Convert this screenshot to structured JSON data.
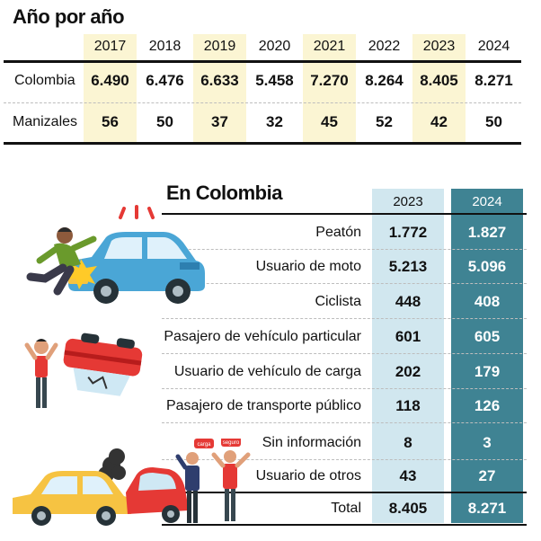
{
  "top": {
    "title": "Año por año",
    "years": [
      "2017",
      "2018",
      "2019",
      "2020",
      "2021",
      "2022",
      "2023",
      "2024"
    ],
    "rows": [
      {
        "label": "Colombia",
        "values": [
          "6.490",
          "6.476",
          "6.633",
          "5.458",
          "7.270",
          "8.264",
          "8.405",
          "8.271"
        ]
      },
      {
        "label": "Manizales",
        "values": [
          "56",
          "50",
          "37",
          "32",
          "45",
          "52",
          "42",
          "50"
        ]
      }
    ]
  },
  "bottom": {
    "title": "En Colombia",
    "col_2023": "2023",
    "col_2024": "2024",
    "rows": [
      {
        "label": "Peatón",
        "v2023": "1.772",
        "v2024": "1.827"
      },
      {
        "label": "Usuario de moto",
        "v2023": "5.213",
        "v2024": "5.096"
      },
      {
        "label": "Ciclista",
        "v2023": "448",
        "v2024": "408"
      },
      {
        "label": "Pasajero de vehículo particular",
        "v2023": "601",
        "v2024": "605"
      },
      {
        "label": "Usuario de vehículo de carga",
        "v2023": "202",
        "v2024": "179"
      },
      {
        "label": "Pasajero de transporte público",
        "v2023": "118",
        "v2024": "126"
      },
      {
        "label": "Sin información",
        "v2023": "8",
        "v2024": "3"
      },
      {
        "label": "Usuario de otros",
        "v2023": "43",
        "v2024": "27"
      }
    ],
    "total": {
      "label": "Total",
      "v2023": "8.405",
      "v2024": "8.271"
    }
  },
  "illustrations": {
    "pedestrian_accident": "pedestrian-hit-by-car-illustration",
    "overturned_car": "overturned-car-illustration",
    "collision": "car-collision-illustration",
    "sign_left": "carga",
    "sign_right": "seguro"
  },
  "colors": {
    "highlight_year": "#fbf5d3",
    "col_2023": "#d1e7ef",
    "col_2024": "#3f8393"
  }
}
